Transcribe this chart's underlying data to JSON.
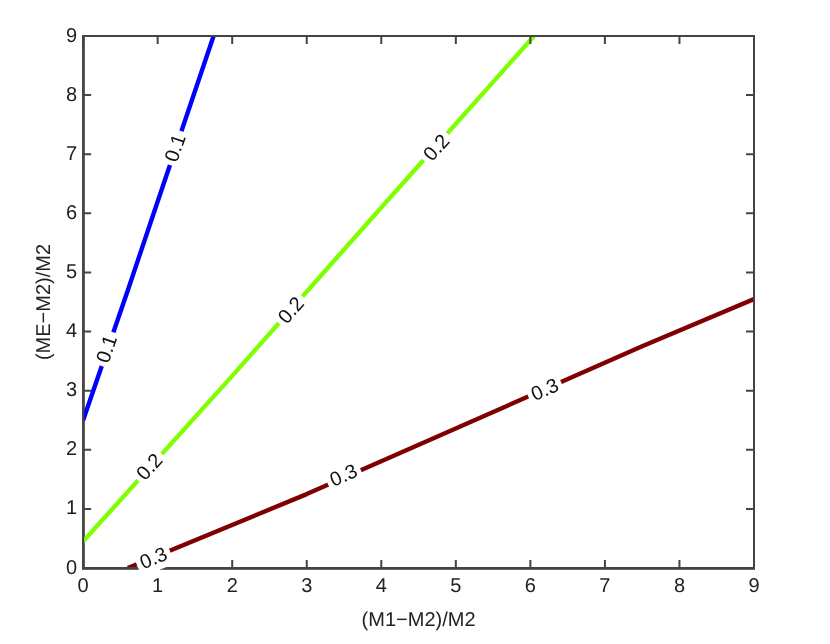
{
  "chart_data": {
    "type": "line",
    "xlabel": "(M1−M2)/M2",
    "ylabel": "(ME−M2)/M2",
    "series": [
      {
        "color": "#0000ff",
        "x": [
          0,
          0.6,
          1,
          1.75
        ],
        "values": [
          2.5,
          4.7,
          6.2,
          9
        ]
      },
      {
        "color": "#80ff00",
        "x": [
          0,
          2,
          4,
          6.05
        ],
        "values": [
          0.45,
          3.25,
          6.1,
          9
        ]
      },
      {
        "color": "#800000",
        "x": [
          0.6,
          3,
          7.5,
          9
        ],
        "values": [
          0,
          1.25,
          3.75,
          4.55
        ]
      }
    ],
    "xlim": [
      0,
      9
    ],
    "ylim": [
      0,
      9
    ],
    "xticks": [
      0,
      1,
      2,
      3,
      4,
      5,
      6,
      7,
      8,
      9
    ],
    "yticks": [
      0,
      1,
      2,
      3,
      4,
      5,
      6,
      7,
      8,
      9
    ],
    "grid": false,
    "legend": false,
    "marker": "none",
    "line_style": "solid",
    "annotations": [
      {
        "text": "0.1",
        "x": 0.33,
        "y": 3.7
      },
      {
        "text": "0.1",
        "x": 1.25,
        "y": 7.1
      },
      {
        "text": "0.2",
        "x": 0.9,
        "y": 1.7
      },
      {
        "text": "0.2",
        "x": 2.8,
        "y": 4.35
      },
      {
        "text": "0.2",
        "x": 4.75,
        "y": 7.1
      },
      {
        "text": "0.3",
        "x": 0.95,
        "y": 0.15
      },
      {
        "text": "0.3",
        "x": 3.5,
        "y": 1.55
      },
      {
        "text": "0.3",
        "x": 6.2,
        "y": 3.0
      }
    ]
  }
}
